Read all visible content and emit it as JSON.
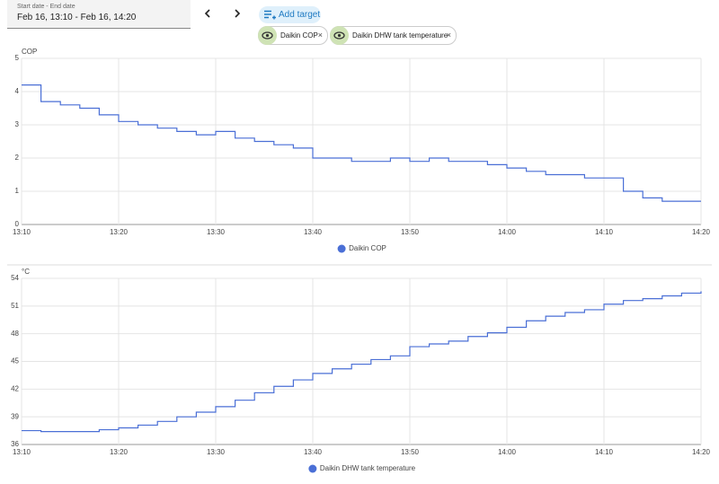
{
  "header": {
    "date_label": "Start date - End date",
    "date_value": "Feb 16, 13:10 - Feb 16, 14:20",
    "add_target": "Add target",
    "targets": [
      "Daikin COP",
      "Daikin DHW tank temperature"
    ]
  },
  "chart_data": [
    {
      "type": "line",
      "step": true,
      "y_label": "COP",
      "x": [
        "13:10",
        "13:12",
        "13:14",
        "13:16",
        "13:18",
        "13:20",
        "13:22",
        "13:24",
        "13:26",
        "13:28",
        "13:30",
        "13:32",
        "13:34",
        "13:36",
        "13:38",
        "13:40",
        "13:42",
        "13:44",
        "13:46",
        "13:48",
        "13:50",
        "13:52",
        "13:54",
        "13:56",
        "13:58",
        "14:00",
        "14:02",
        "14:04",
        "14:06",
        "14:08",
        "14:10",
        "14:12",
        "14:14",
        "14:16",
        "14:18",
        "14:20"
      ],
      "series": [
        {
          "name": "Daikin COP",
          "color": "#4a6fd6",
          "values": [
            4.2,
            3.7,
            3.6,
            3.5,
            3.3,
            3.1,
            3.0,
            2.9,
            2.8,
            2.7,
            2.8,
            2.6,
            2.5,
            2.4,
            2.3,
            2.0,
            2.0,
            1.9,
            1.9,
            2.0,
            1.9,
            2.0,
            1.9,
            1.9,
            1.8,
            1.7,
            1.6,
            1.5,
            1.5,
            1.4,
            1.4,
            1.0,
            0.8,
            0.7,
            0.7,
            0.7
          ]
        }
      ],
      "xlim": [
        "13:10",
        "14:20"
      ],
      "xticks": [
        "13:10",
        "13:20",
        "13:30",
        "13:40",
        "13:50",
        "14:00",
        "14:10",
        "14:20"
      ],
      "ylim": [
        0,
        5
      ],
      "yticks": [
        0,
        1,
        2,
        3,
        4,
        5
      ],
      "grid": true,
      "legend": "bottom"
    },
    {
      "type": "line",
      "step": true,
      "y_label": "°C",
      "x": [
        "13:10",
        "13:12",
        "13:14",
        "13:16",
        "13:18",
        "13:20",
        "13:22",
        "13:24",
        "13:26",
        "13:28",
        "13:30",
        "13:32",
        "13:34",
        "13:36",
        "13:38",
        "13:40",
        "13:42",
        "13:44",
        "13:46",
        "13:48",
        "13:50",
        "13:52",
        "13:54",
        "13:56",
        "13:58",
        "14:00",
        "14:02",
        "14:04",
        "14:06",
        "14:08",
        "14:10",
        "14:12",
        "14:14",
        "14:16",
        "14:18",
        "14:20"
      ],
      "series": [
        {
          "name": "Daikin DHW tank temperature",
          "color": "#4a6fd6",
          "values": [
            37.5,
            37.4,
            37.4,
            37.4,
            37.6,
            37.8,
            38.1,
            38.5,
            39.0,
            39.5,
            40.1,
            40.8,
            41.6,
            42.3,
            43.0,
            43.7,
            44.2,
            44.7,
            45.2,
            45.6,
            46.6,
            46.9,
            47.2,
            47.7,
            48.1,
            48.7,
            49.4,
            49.9,
            50.3,
            50.6,
            51.2,
            51.6,
            51.8,
            52.1,
            52.4,
            52.6
          ]
        }
      ],
      "xlim": [
        "13:10",
        "14:20"
      ],
      "xticks": [
        "13:10",
        "13:20",
        "13:30",
        "13:40",
        "13:50",
        "14:00",
        "14:10",
        "14:20"
      ],
      "ylim": [
        36,
        54
      ],
      "yticks": [
        36,
        39,
        42,
        45,
        48,
        51,
        54
      ],
      "grid": true,
      "legend": "bottom"
    }
  ]
}
